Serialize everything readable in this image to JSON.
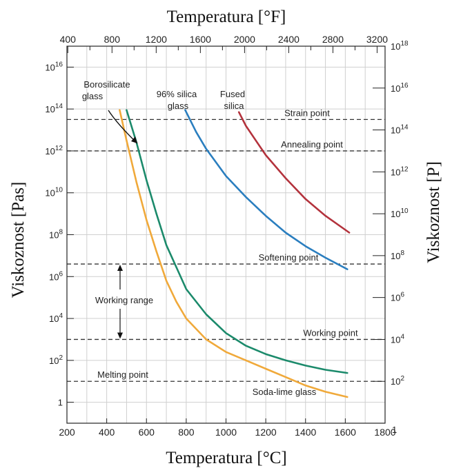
{
  "chart_data": {
    "type": "line",
    "title_top": "Temperatura [°F]",
    "xlabel": "Temperatura [°C]",
    "ylabel_left": "Viskoznost [Pas]",
    "ylabel_right": "Viskoznost [P]",
    "xlim": [
      200,
      1800
    ],
    "ylim_log10_pas": [
      -1,
      17
    ],
    "x_ticks": [
      "200",
      "400",
      "600",
      "800",
      "1000",
      "1200",
      "1400",
      "1600",
      "1800"
    ],
    "x_tick_values": [
      200,
      400,
      600,
      800,
      1000,
      1200,
      1400,
      1600,
      1800
    ],
    "top_ticks": [
      "400",
      "800",
      "1200",
      "1600",
      "2000",
      "2400",
      "2800",
      "3200"
    ],
    "top_tick_values_f": [
      400,
      800,
      1200,
      1600,
      2000,
      2400,
      2800,
      3200
    ],
    "left_ticks": [
      {
        "base": "1",
        "exp": "",
        "value": 0
      },
      {
        "base": "10",
        "exp": "2",
        "value": 2
      },
      {
        "base": "10",
        "exp": "4",
        "value": 4
      },
      {
        "base": "10",
        "exp": "6",
        "value": 6
      },
      {
        "base": "10",
        "exp": "8",
        "value": 8
      },
      {
        "base": "10",
        "exp": "10",
        "value": 10
      },
      {
        "base": "10",
        "exp": "12",
        "value": 12
      },
      {
        "base": "10",
        "exp": "14",
        "value": 14
      },
      {
        "base": "10",
        "exp": "16",
        "value": 16
      }
    ],
    "right_ticks": [
      {
        "base": "1",
        "exp": "",
        "value": 0
      },
      {
        "base": "10",
        "exp": "2",
        "value": 2
      },
      {
        "base": "10",
        "exp": "4",
        "value": 4
      },
      {
        "base": "10",
        "exp": "6",
        "value": 6
      },
      {
        "base": "10",
        "exp": "8",
        "value": 8
      },
      {
        "base": "10",
        "exp": "10",
        "value": 10
      },
      {
        "base": "10",
        "exp": "12",
        "value": 12
      },
      {
        "base": "10",
        "exp": "14",
        "value": 14
      },
      {
        "base": "10",
        "exp": "16",
        "value": 16
      },
      {
        "base": "10",
        "exp": "18",
        "value": 18
      }
    ],
    "series": [
      {
        "name": "Soda-lime glass",
        "color": "#f0a93a",
        "points": [
          [
            465,
            13.95
          ],
          [
            500,
            12.5
          ],
          [
            550,
            10.5
          ],
          [
            600,
            8.7
          ],
          [
            650,
            7.2
          ],
          [
            700,
            5.8
          ],
          [
            750,
            4.8
          ],
          [
            800,
            4.0
          ],
          [
            900,
            3.0
          ],
          [
            1000,
            2.4
          ],
          [
            1100,
            2.0
          ],
          [
            1200,
            1.6
          ],
          [
            1300,
            1.2
          ],
          [
            1400,
            0.8
          ],
          [
            1500,
            0.5
          ],
          [
            1610,
            0.25
          ]
        ]
      },
      {
        "name": "Borosilicate glass",
        "color": "#1b8a6b",
        "points": [
          [
            500,
            13.95
          ],
          [
            550,
            12.4
          ],
          [
            600,
            10.6
          ],
          [
            650,
            9.0
          ],
          [
            700,
            7.5
          ],
          [
            800,
            5.4
          ],
          [
            900,
            4.2
          ],
          [
            1000,
            3.3
          ],
          [
            1100,
            2.7
          ],
          [
            1200,
            2.3
          ],
          [
            1300,
            2.0
          ],
          [
            1400,
            1.75
          ],
          [
            1500,
            1.55
          ],
          [
            1610,
            1.4
          ]
        ]
      },
      {
        "name": "96% silica glass",
        "color": "#2a7ebf",
        "points": [
          [
            795,
            13.95
          ],
          [
            850,
            12.9
          ],
          [
            900,
            12.1
          ],
          [
            1000,
            10.8
          ],
          [
            1100,
            9.8
          ],
          [
            1200,
            8.9
          ],
          [
            1300,
            8.1
          ],
          [
            1400,
            7.45
          ],
          [
            1500,
            6.9
          ],
          [
            1610,
            6.35
          ]
        ]
      },
      {
        "name": "Fused silica",
        "color": "#b3323c",
        "points": [
          [
            1065,
            13.85
          ],
          [
            1100,
            13.2
          ],
          [
            1150,
            12.5
          ],
          [
            1200,
            11.8
          ],
          [
            1300,
            10.7
          ],
          [
            1400,
            9.7
          ],
          [
            1500,
            8.9
          ],
          [
            1620,
            8.1
          ]
        ]
      }
    ],
    "reference_lines": [
      {
        "label": "Strain point",
        "log10_pas": 13.5
      },
      {
        "label": "Annealing point",
        "log10_pas": 12.0
      },
      {
        "label": "Softening point",
        "log10_pas": 6.6
      },
      {
        "label": "Working point",
        "log10_pas": 3.0
      },
      {
        "label": "Melting point",
        "log10_pas": 1.0
      }
    ],
    "annotations": {
      "borosilicate": [
        "Borosilicate",
        "glass"
      ],
      "silica96": [
        "96% silica",
        "glass"
      ],
      "fused": [
        "Fused",
        "silica"
      ],
      "soda_lime": "Soda-lime glass",
      "working_range": "Working range"
    },
    "grid": true
  }
}
